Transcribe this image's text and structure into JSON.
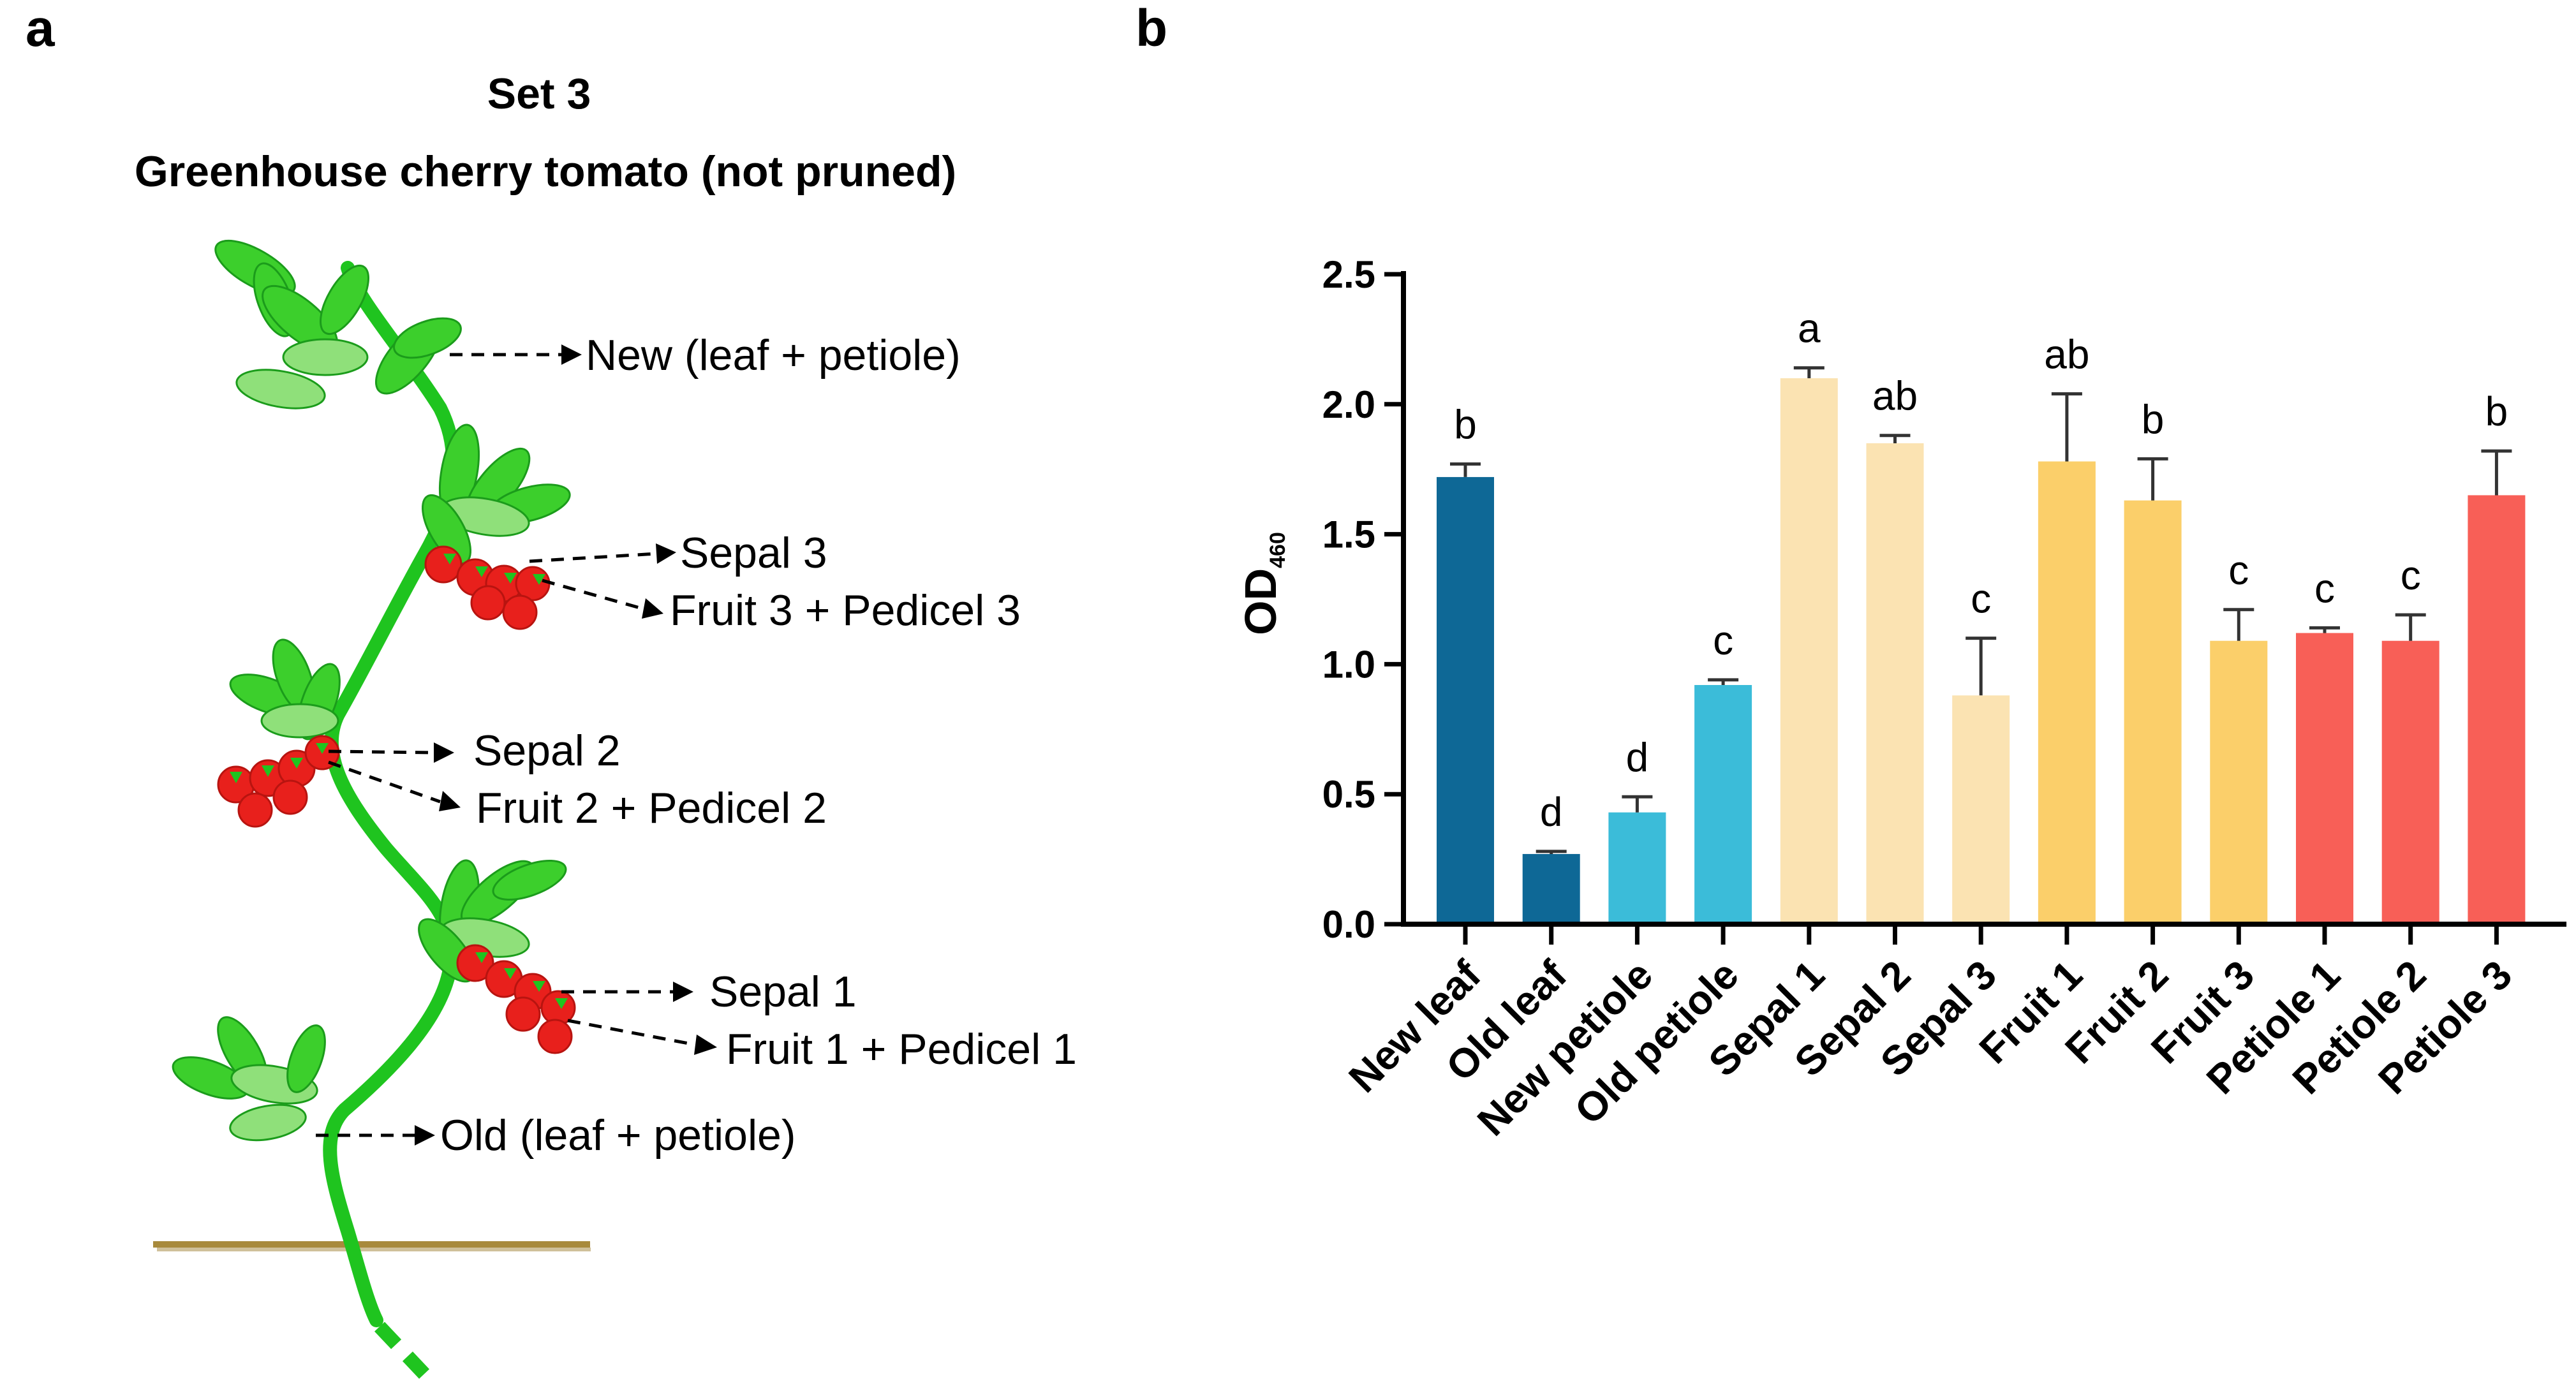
{
  "panel_a": {
    "label": "a",
    "set_title": "Set 3",
    "subtitle": "Greenhouse cherry tomato (not pruned)",
    "callouts": {
      "new_leaf": "New (leaf + petiole)",
      "sepal_3": "Sepal 3",
      "fruit_3": "Fruit 3 + Pedicel  3",
      "sepal_2": "Sepal 2",
      "fruit_2": "Fruit 2 + Pedicel  2",
      "sepal_1": "Sepal 1",
      "fruit_1": "Fruit 1 + Pedicel 1",
      "old_leaf": "Old (leaf + petiole)"
    },
    "colors": {
      "stem": "#1fc41f",
      "leaf": "#3ccf2c",
      "leaf_light": "#8fe07a",
      "fruit": "#e8201c",
      "soil": "#a88a3c"
    }
  },
  "panel_b": {
    "label": "b",
    "y_title_main": "OD",
    "y_title_sub": "460"
  },
  "chart_data": {
    "type": "bar",
    "title": "",
    "xlabel": "",
    "ylabel": "OD460",
    "ylim": [
      0,
      2.5
    ],
    "yticks": [
      0.0,
      0.5,
      1.0,
      1.5,
      2.0,
      2.5
    ],
    "ytick_labels": [
      "0.0",
      "0.5",
      "1.0",
      "1.5",
      "2.0",
      "2.5"
    ],
    "categories": [
      "New leaf",
      "Old leaf",
      "New petiole",
      "Old petiole",
      "Sepal 1",
      "Sepal 2",
      "Sepal 3",
      "Fruit 1",
      "Fruit 2",
      "Fruit 3",
      "Petiole 1",
      "Petiole 2",
      "Petiole 3"
    ],
    "values": [
      1.72,
      0.27,
      0.43,
      0.92,
      2.1,
      1.85,
      0.88,
      1.78,
      1.63,
      1.09,
      1.12,
      1.09,
      1.65
    ],
    "errors": [
      0.05,
      0.01,
      0.06,
      0.02,
      0.04,
      0.03,
      0.22,
      0.26,
      0.16,
      0.12,
      0.02,
      0.1,
      0.17
    ],
    "significance": [
      "b",
      "d",
      "d",
      "c",
      "a",
      "ab",
      "c",
      "ab",
      "b",
      "c",
      "c",
      "c",
      "b"
    ],
    "colors": [
      "#0e6896",
      "#0e6896",
      "#3bbcd9",
      "#3bbcd9",
      "#fbe3b2",
      "#fbe3b2",
      "#fbe3b2",
      "#fbcf6a",
      "#fbcf6a",
      "#fbcf6a",
      "#f85f57",
      "#f85f57",
      "#f85f57"
    ]
  }
}
